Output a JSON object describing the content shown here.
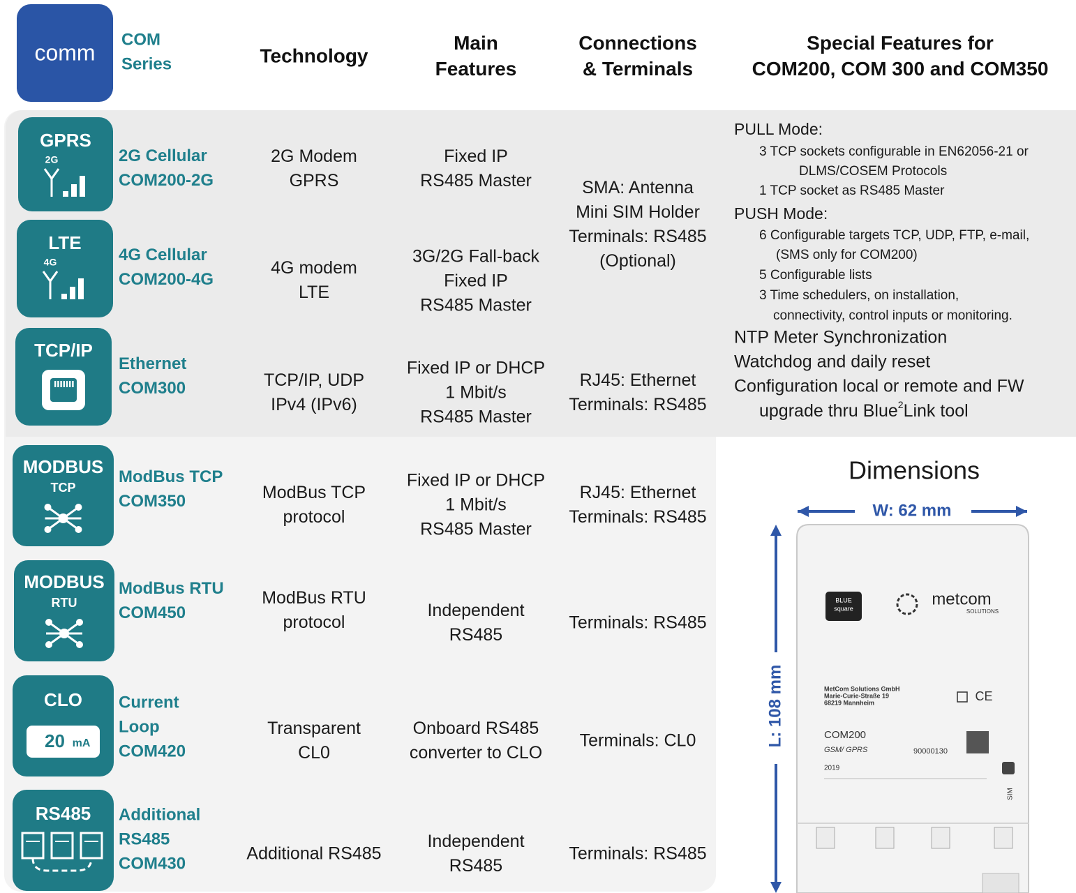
{
  "header": {
    "logo": "comm",
    "series": [
      "COM",
      "Series"
    ],
    "columns": [
      [
        "Technology"
      ],
      [
        "Main",
        "Features"
      ],
      [
        "Connections",
        "& Terminals"
      ],
      [
        "Special Features for",
        "COM200, COM 300 and COM350"
      ]
    ]
  },
  "rows": [
    {
      "icon": [
        "GPRS",
        "2G"
      ],
      "name": [
        "2G Cellular",
        "COM200-2G"
      ],
      "technology": [
        "2G Modem",
        "GPRS"
      ],
      "features": [
        "Fixed IP",
        "RS485 Master"
      ],
      "connections": [
        "SMA: Antenna",
        "Mini SIM Holder",
        "Terminals: RS485",
        "(Optional)"
      ]
    },
    {
      "icon": [
        "LTE",
        "4G"
      ],
      "name": [
        "4G Cellular",
        "COM200-4G"
      ],
      "technology": [
        "4G modem",
        "LTE"
      ],
      "features": [
        "3G/2G Fall-back",
        "Fixed IP",
        "RS485 Master"
      ]
    },
    {
      "icon": [
        "TCP/IP"
      ],
      "name": [
        "Ethernet",
        "COM300"
      ],
      "technology": [
        "TCP/IP, UDP",
        "IPv4 (IPv6)"
      ],
      "features": [
        "Fixed IP or DHCP",
        "1 Mbit/s",
        "RS485 Master"
      ],
      "connections": [
        "RJ45: Ethernet",
        "Terminals: RS485"
      ]
    },
    {
      "icon": [
        "MODBUS",
        "TCP"
      ],
      "name": [
        "ModBus TCP",
        "COM350"
      ],
      "technology": [
        "ModBus TCP",
        "protocol"
      ],
      "features": [
        "Fixed IP or DHCP",
        "1 Mbit/s",
        "RS485 Master"
      ],
      "connections": [
        "RJ45: Ethernet",
        "Terminals: RS485"
      ]
    },
    {
      "icon": [
        "MODBUS",
        "RTU"
      ],
      "name": [
        "ModBus RTU",
        "COM450"
      ],
      "technology": [
        "ModBus RTU",
        "protocol"
      ],
      "features": [
        "Independent",
        "RS485"
      ],
      "connections": [
        "Terminals: RS485"
      ]
    },
    {
      "icon": [
        "CLO",
        "20",
        "mA"
      ],
      "name": [
        "Current",
        "Loop",
        "COM420"
      ],
      "technology": [
        "Transparent",
        "CL0"
      ],
      "features": [
        "Onboard RS485",
        "converter to CLO"
      ],
      "connections": [
        "Terminals: CL0"
      ]
    },
    {
      "icon": [
        "RS485"
      ],
      "name": [
        "Additional",
        "RS485",
        "COM430"
      ],
      "technology": [
        "Additional RS485"
      ],
      "features": [
        "Independent",
        "RS485"
      ],
      "connections": [
        "Terminals: RS485"
      ]
    }
  ],
  "special_features": [
    "PULL Mode:",
    "3 TCP sockets configurable in EN62056-21 or",
    "DLMS/COSEM Protocols",
    "1 TCP socket as RS485 Master",
    "PUSH Mode:",
    "6 Configurable targets TCP, UDP, FTP, e-mail,",
    "(SMS only for COM200)",
    "5 Configurable lists",
    "3 Time schedulers, on installation,",
    "connectivity, control inputs or monitoring.",
    "NTP Meter Synchronization",
    "Watchdog and daily reset",
    "Configuration local or remote and FW",
    [
      "upgrade thru Blue",
      "2",
      "Link tool"
    ]
  ],
  "dimensions": {
    "title": "Dimensions",
    "width": "W: 62 mm",
    "length": "L: 108 mm"
  },
  "device": {
    "brand": [
      "BLUE",
      "square"
    ],
    "logo": [
      "metcom",
      "SOLUTIONS"
    ],
    "address": [
      "MetCom Solutions GmbH",
      "Marie-Curie-Straße 19",
      "68219 Mannheim"
    ],
    "ce": "CE",
    "model": "COM200",
    "tech": "GSM/ GPRS",
    "year": "2019",
    "serial": "90000130",
    "sim": "SIM"
  }
}
